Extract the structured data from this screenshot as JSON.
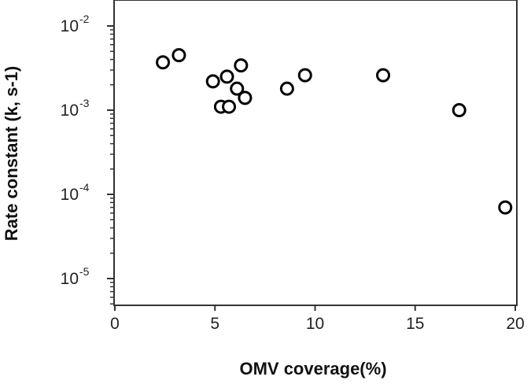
{
  "chart_data": {
    "type": "scatter",
    "title": "",
    "xlabel": "OMV coverage(%)",
    "ylabel": "Rate constant (k, s-1)",
    "x_scale": "linear",
    "y_scale": "log",
    "xlim": [
      0,
      20
    ],
    "ylim": [
      5e-06,
      0.015
    ],
    "x_ticks": [
      0,
      5,
      10,
      15,
      20
    ],
    "x_tick_labels": [
      "0",
      "5",
      "10",
      "15",
      "20"
    ],
    "y_ticks": [
      0.01,
      0.001,
      0.0001,
      1e-05
    ],
    "y_tick_labels": [
      {
        "base": "10",
        "exp": "-2"
      },
      {
        "base": "10",
        "exp": "-3"
      },
      {
        "base": "10",
        "exp": "-4"
      },
      {
        "base": "10",
        "exp": "-5"
      }
    ],
    "grid": false,
    "legend": "none",
    "marker": "open-circle",
    "points": [
      {
        "x": 2.4,
        "y": 0.0037
      },
      {
        "x": 3.2,
        "y": 0.0045
      },
      {
        "x": 4.9,
        "y": 0.0022
      },
      {
        "x": 5.3,
        "y": 0.0011
      },
      {
        "x": 5.6,
        "y": 0.0025
      },
      {
        "x": 5.7,
        "y": 0.0011
      },
      {
        "x": 6.1,
        "y": 0.0018
      },
      {
        "x": 6.3,
        "y": 0.0034
      },
      {
        "x": 6.5,
        "y": 0.0014
      },
      {
        "x": 8.6,
        "y": 0.0018
      },
      {
        "x": 9.5,
        "y": 0.0026
      },
      {
        "x": 13.4,
        "y": 0.0026
      },
      {
        "x": 17.2,
        "y": 0.001
      },
      {
        "x": 19.5,
        "y": 7e-05
      }
    ]
  },
  "colors": {
    "axis": "#333333",
    "marker_stroke": "#000000",
    "marker_fill": "#ffffff"
  }
}
